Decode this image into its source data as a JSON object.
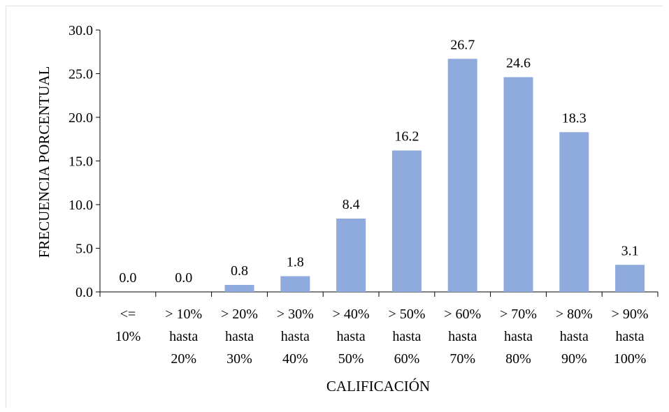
{
  "chart_data": {
    "type": "bar",
    "title": "",
    "xlabel": "CALIFICACIÓN",
    "ylabel": "FRECUENCIA PORCENTUAL",
    "ylim": [
      0,
      30
    ],
    "yticks": [
      "0.0",
      "5.0",
      "10.0",
      "15.0",
      "20.0",
      "25.0",
      "30.0"
    ],
    "grid": false,
    "legend": "none",
    "bar_color": "#8faadc",
    "categories": [
      [
        "<=",
        "10%"
      ],
      [
        "> 10%",
        "hasta",
        "20%"
      ],
      [
        "> 20%",
        "hasta",
        "30%"
      ],
      [
        "> 30%",
        "hasta",
        "40%"
      ],
      [
        "> 40%",
        "hasta",
        "50%"
      ],
      [
        "> 50%",
        "hasta",
        "60%"
      ],
      [
        "> 60%",
        "hasta",
        "70%"
      ],
      [
        "> 70%",
        "hasta",
        "80%"
      ],
      [
        "> 80%",
        "hasta",
        "90%"
      ],
      [
        "> 90%",
        "hasta",
        "100%"
      ]
    ],
    "values": [
      0.0,
      0.0,
      0.8,
      1.8,
      8.4,
      16.2,
      26.7,
      24.6,
      18.3,
      3.1
    ],
    "data_labels": [
      "0.0",
      "0.0",
      "0.8",
      "1.8",
      "8.4",
      "16.2",
      "26.7",
      "24.6",
      "18.3",
      "3.1"
    ]
  }
}
